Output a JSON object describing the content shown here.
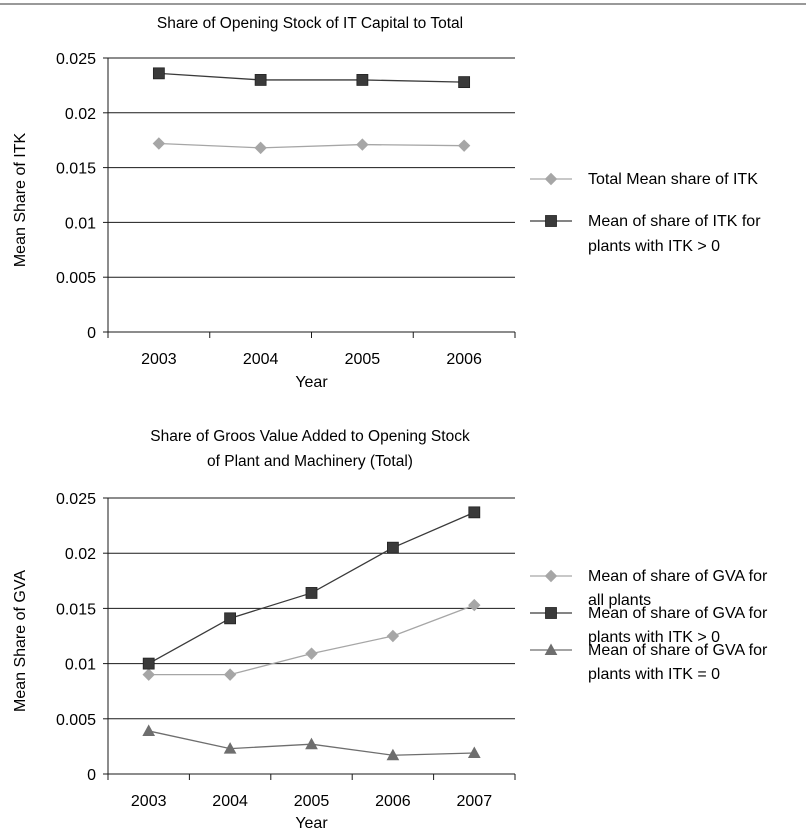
{
  "chart_data": [
    {
      "type": "line",
      "title": "Share of Opening Stock of IT Capital to Total",
      "xlabel": "Year",
      "ylabel": "Mean Share of ITK",
      "categories": [
        "2003",
        "2004",
        "2005",
        "2006"
      ],
      "ylim": [
        0,
        0.025
      ],
      "yticks": [
        "0",
        "0.005",
        "0.01",
        "0.015",
        "0.02",
        "0.025"
      ],
      "grid": true,
      "legend_position": "right",
      "series": [
        {
          "name": "Total Mean share of ITK",
          "marker": "diamond",
          "color": "#a6a6a6",
          "values": [
            0.0172,
            0.0168,
            0.0171,
            0.017
          ]
        },
        {
          "name": "Mean of share of ITK for plants with ITK > 0",
          "marker": "square",
          "color": "#3a3a3a",
          "values": [
            0.0236,
            0.023,
            0.023,
            0.0228
          ]
        }
      ]
    },
    {
      "type": "line",
      "title": "Share of Groos Value Added to Opening Stock of Plant and Machinery (Total)",
      "title_lines": [
        "Share of Groos Value Added to Opening Stock",
        "of Plant and Machinery (Total)"
      ],
      "xlabel": "Year",
      "ylabel": "Mean Share of GVA",
      "categories": [
        "2003",
        "2004",
        "2005",
        "2006",
        "2007"
      ],
      "ylim": [
        0,
        0.025
      ],
      "yticks": [
        "0",
        "0.005",
        "0.01",
        "0.015",
        "0.02",
        "0.025"
      ],
      "grid": true,
      "legend_position": "right",
      "series": [
        {
          "name": "Mean of share of GVA for all plants",
          "marker": "diamond",
          "color": "#a6a6a6",
          "values": [
            0.009,
            0.009,
            0.0109,
            0.0125,
            0.0153
          ]
        },
        {
          "name": "Mean of share of GVA for plants with ITK > 0",
          "marker": "square",
          "color": "#3a3a3a",
          "values": [
            0.01,
            0.0141,
            0.0164,
            0.0205,
            0.0237
          ]
        },
        {
          "name": "Mean of share of GVA for plants with ITK = 0",
          "marker": "triangle",
          "color": "#6e6e6e",
          "values": [
            0.0039,
            0.0023,
            0.0027,
            0.0017,
            0.0019
          ]
        }
      ]
    }
  ]
}
